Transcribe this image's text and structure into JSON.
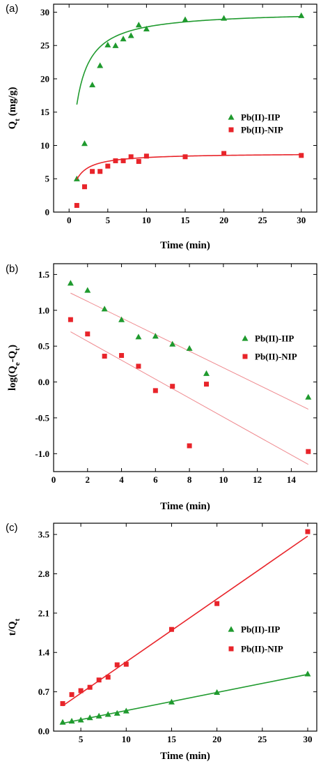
{
  "chart_data": [
    {
      "panel": "(a)",
      "type": "scatter",
      "xlabel": "Time (min)",
      "ylabel_main": "Q",
      "ylabel_sub": "t",
      "ylabel_tail": " (mg/g)",
      "xlim": [
        -2,
        32
      ],
      "ylim": [
        0,
        31.2
      ],
      "xticks": [
        0,
        5,
        10,
        15,
        20,
        25,
        30
      ],
      "yticks": [
        0,
        5,
        10,
        15,
        20,
        25,
        30
      ],
      "legend_position": "center-right",
      "series": [
        {
          "name": "Pb(II)-IIP",
          "color": "#1f9a2e",
          "marker": "triangle",
          "x": [
            1,
            2,
            3,
            4,
            5,
            6,
            7,
            8,
            9,
            10,
            15,
            20,
            30
          ],
          "y": [
            5.0,
            10.3,
            19.1,
            22.0,
            25.1,
            25.0,
            26.0,
            26.5,
            28.1,
            27.5,
            28.9,
            29.1,
            29.5
          ],
          "fit": {
            "model": "pseudo-second-order",
            "qe": 30.2,
            "k": 0.038,
            "color": "#1f9a2e"
          }
        },
        {
          "name": "Pb(II)-NIP",
          "color": "#e8242a",
          "marker": "square",
          "x": [
            1,
            2,
            3,
            4,
            5,
            6,
            7,
            8,
            9,
            10,
            15,
            20,
            30
          ],
          "y": [
            1.0,
            3.8,
            6.1,
            6.1,
            6.9,
            7.7,
            7.7,
            8.3,
            7.6,
            8.4,
            8.3,
            8.8,
            8.5
          ],
          "fit": {
            "model": "pseudo-second-order",
            "qe": 8.85,
            "k": 0.14,
            "color": "#e8242a"
          }
        }
      ]
    },
    {
      "panel": "(b)",
      "type": "scatter",
      "xlabel": "Time (min)",
      "ylabel_main": "log(Q",
      "ylabel_sub_e": "e",
      "ylabel_mid": "-Q",
      "ylabel_sub_t": "t",
      "ylabel_tail": ")",
      "xlim": [
        0,
        15.5
      ],
      "ylim": [
        -1.25,
        1.65
      ],
      "xticks": [
        0,
        2,
        4,
        6,
        8,
        10,
        12,
        14
      ],
      "yticks": [
        -1.0,
        -0.5,
        0.0,
        0.5,
        1.0,
        1.5
      ],
      "ytick_labels": [
        "-1.0",
        "-0.5",
        "0.0",
        "0.5",
        "1.0",
        "1.5"
      ],
      "legend_position": "center-right",
      "series": [
        {
          "name": "Pb(II)-IIP",
          "color": "#1f9a2e",
          "marker": "triangle",
          "x": [
            1,
            2,
            3,
            4,
            5,
            6,
            7,
            8,
            9,
            15
          ],
          "y": [
            1.38,
            1.28,
            1.02,
            0.87,
            0.63,
            0.64,
            0.53,
            0.47,
            0.12,
            -0.21
          ],
          "fit": {
            "model": "linear",
            "x": [
              1,
              15
            ],
            "y": [
              1.24,
              -0.38
            ],
            "color": "#ef8a8f"
          }
        },
        {
          "name": "Pb(II)-NIP",
          "color": "#e8242a",
          "marker": "square",
          "x": [
            1,
            2,
            3,
            4,
            5,
            6,
            7,
            8,
            9,
            15
          ],
          "y": [
            0.87,
            0.67,
            0.36,
            0.37,
            0.22,
            -0.12,
            -0.06,
            -0.89,
            -0.03,
            -0.97
          ],
          "fit": {
            "model": "linear",
            "x": [
              1,
              15
            ],
            "y": [
              0.7,
              -1.15
            ],
            "color": "#ef8a8f"
          }
        }
      ]
    },
    {
      "panel": "(c)",
      "type": "scatter",
      "xlabel": "Time (min)",
      "ylabel_main": "t/Q",
      "ylabel_sub": "t",
      "ylabel_tail": "",
      "xlim": [
        2,
        31
      ],
      "ylim": [
        0,
        3.7
      ],
      "xticks": [
        5,
        10,
        15,
        20,
        25,
        30
      ],
      "yticks": [
        0.0,
        0.7,
        1.4,
        2.1,
        2.8,
        3.5
      ],
      "ytick_labels": [
        "0.0",
        "0.7",
        "1.4",
        "2.1",
        "2.8",
        "3.5"
      ],
      "legend_position": "center-right",
      "series": [
        {
          "name": "Pb(II)-IIP",
          "color": "#1f9a2e",
          "marker": "triangle",
          "x": [
            3,
            4,
            5,
            6,
            7,
            8,
            9,
            10,
            15,
            20,
            30
          ],
          "y": [
            0.16,
            0.18,
            0.2,
            0.24,
            0.27,
            0.3,
            0.32,
            0.36,
            0.52,
            0.69,
            1.02
          ],
          "fit": {
            "model": "linear",
            "x": [
              3,
              30
            ],
            "y": [
              0.14,
              1.01
            ],
            "color": "#1f9a2e"
          }
        },
        {
          "name": "Pb(II)-NIP",
          "color": "#e8242a",
          "marker": "square",
          "x": [
            3,
            4,
            5,
            6,
            7,
            8,
            9,
            10,
            15,
            20,
            30
          ],
          "y": [
            0.49,
            0.65,
            0.72,
            0.78,
            0.91,
            0.96,
            1.18,
            1.19,
            1.81,
            2.27,
            3.55
          ],
          "fit": {
            "model": "linear",
            "x": [
              3,
              30
            ],
            "y": [
              0.45,
              3.47
            ],
            "color": "#e8242a"
          }
        }
      ]
    }
  ]
}
